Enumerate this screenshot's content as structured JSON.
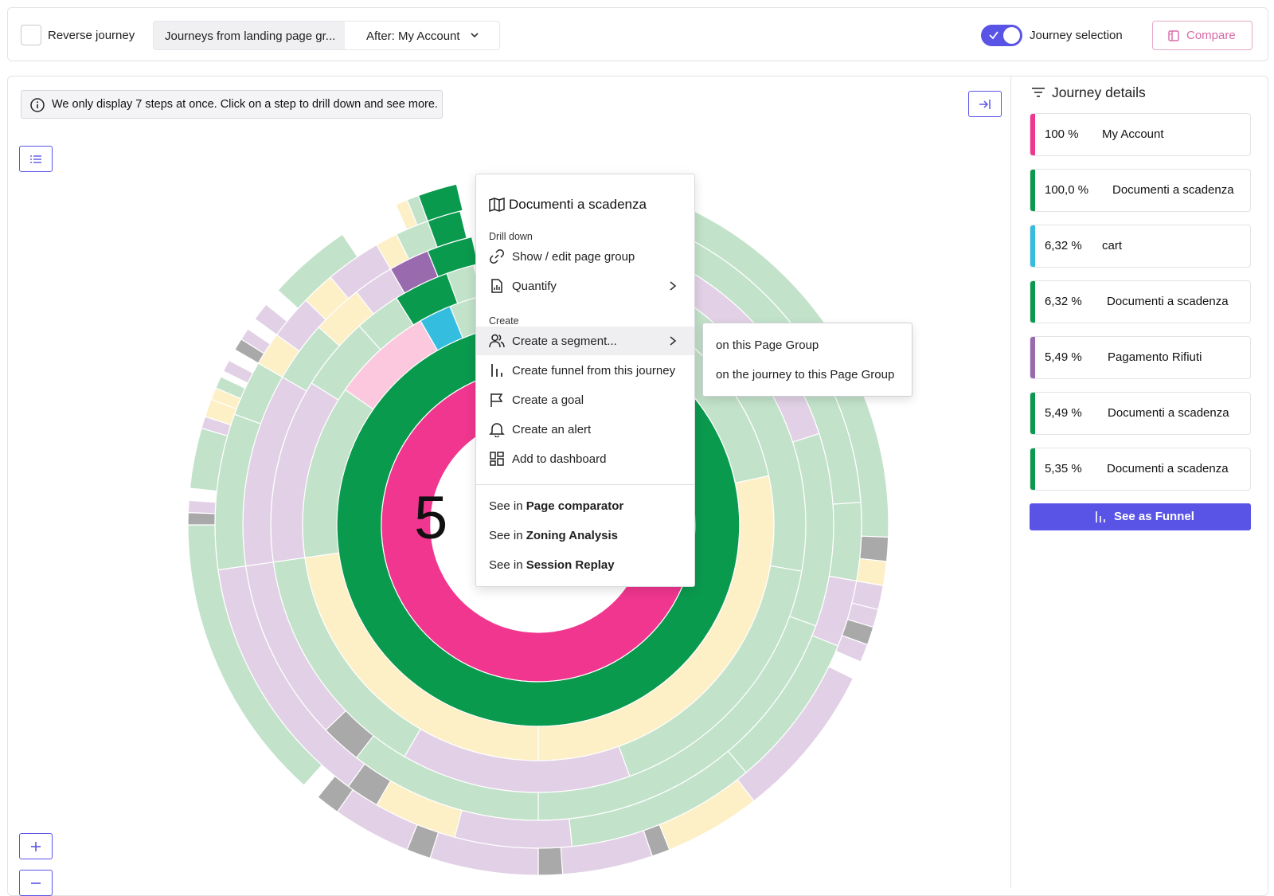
{
  "toolbar": {
    "reverse_label": "Reverse journey",
    "segment_a": "Journeys from landing page gr...",
    "segment_b": "After: My Account",
    "toggle_label": "Journey selection",
    "compare_label": "Compare"
  },
  "info_message": "We only display 7 steps at once. Click on a step to drill down and see more.",
  "center_value": "5",
  "context_menu": {
    "title": "Documenti a scadenza",
    "section_drill": "Drill down",
    "show_edit": "Show / edit page group",
    "quantify": "Quantify",
    "section_create": "Create",
    "create_segment": "Create a segment...",
    "create_funnel": "Create funnel from this journey",
    "create_goal": "Create a goal",
    "create_alert": "Create an alert",
    "add_dashboard": "Add to dashboard",
    "see_in": "See in",
    "see_page_comparator": "Page comparator",
    "see_zoning": "Zoning Analysis",
    "see_replay": "Session Replay"
  },
  "submenu": {
    "on_page_group": "on this Page Group",
    "on_journey": "on the journey to this Page Group"
  },
  "journey_details": {
    "title": "Journey details",
    "items": [
      {
        "pct": "100 %",
        "name": "My Account",
        "color": "#f0368f"
      },
      {
        "pct": "100,0 %",
        "name": "Documenti a scadenza",
        "color": "#0a9a4e"
      },
      {
        "pct": "6,32 %",
        "name": "cart",
        "color": "#35bde0"
      },
      {
        "pct": "6,32 %",
        "name": "Documenti a scadenza",
        "color": "#0a9a4e"
      },
      {
        "pct": "5,49 %",
        "name": "Pagamento Rifiuti",
        "color": "#9a6aae"
      },
      {
        "pct": "5,49 %",
        "name": "Documenti a scadenza",
        "color": "#0a9a4e"
      },
      {
        "pct": "5,35 %",
        "name": "Documenti a scadenza",
        "color": "#0a9a4e"
      }
    ],
    "funnel_button": "See as Funnel"
  },
  "colors": {
    "accent": "#5a54e6",
    "pink": "#f0368f",
    "green": "#0a9a4e",
    "light_green": "#c2e2ca",
    "lavender": "#e2d1e6",
    "cream": "#fdefc6",
    "purple": "#9a6aae",
    "cyan": "#35bde0",
    "light_pink": "#fbc8de",
    "gray": "#a9a9a9"
  }
}
